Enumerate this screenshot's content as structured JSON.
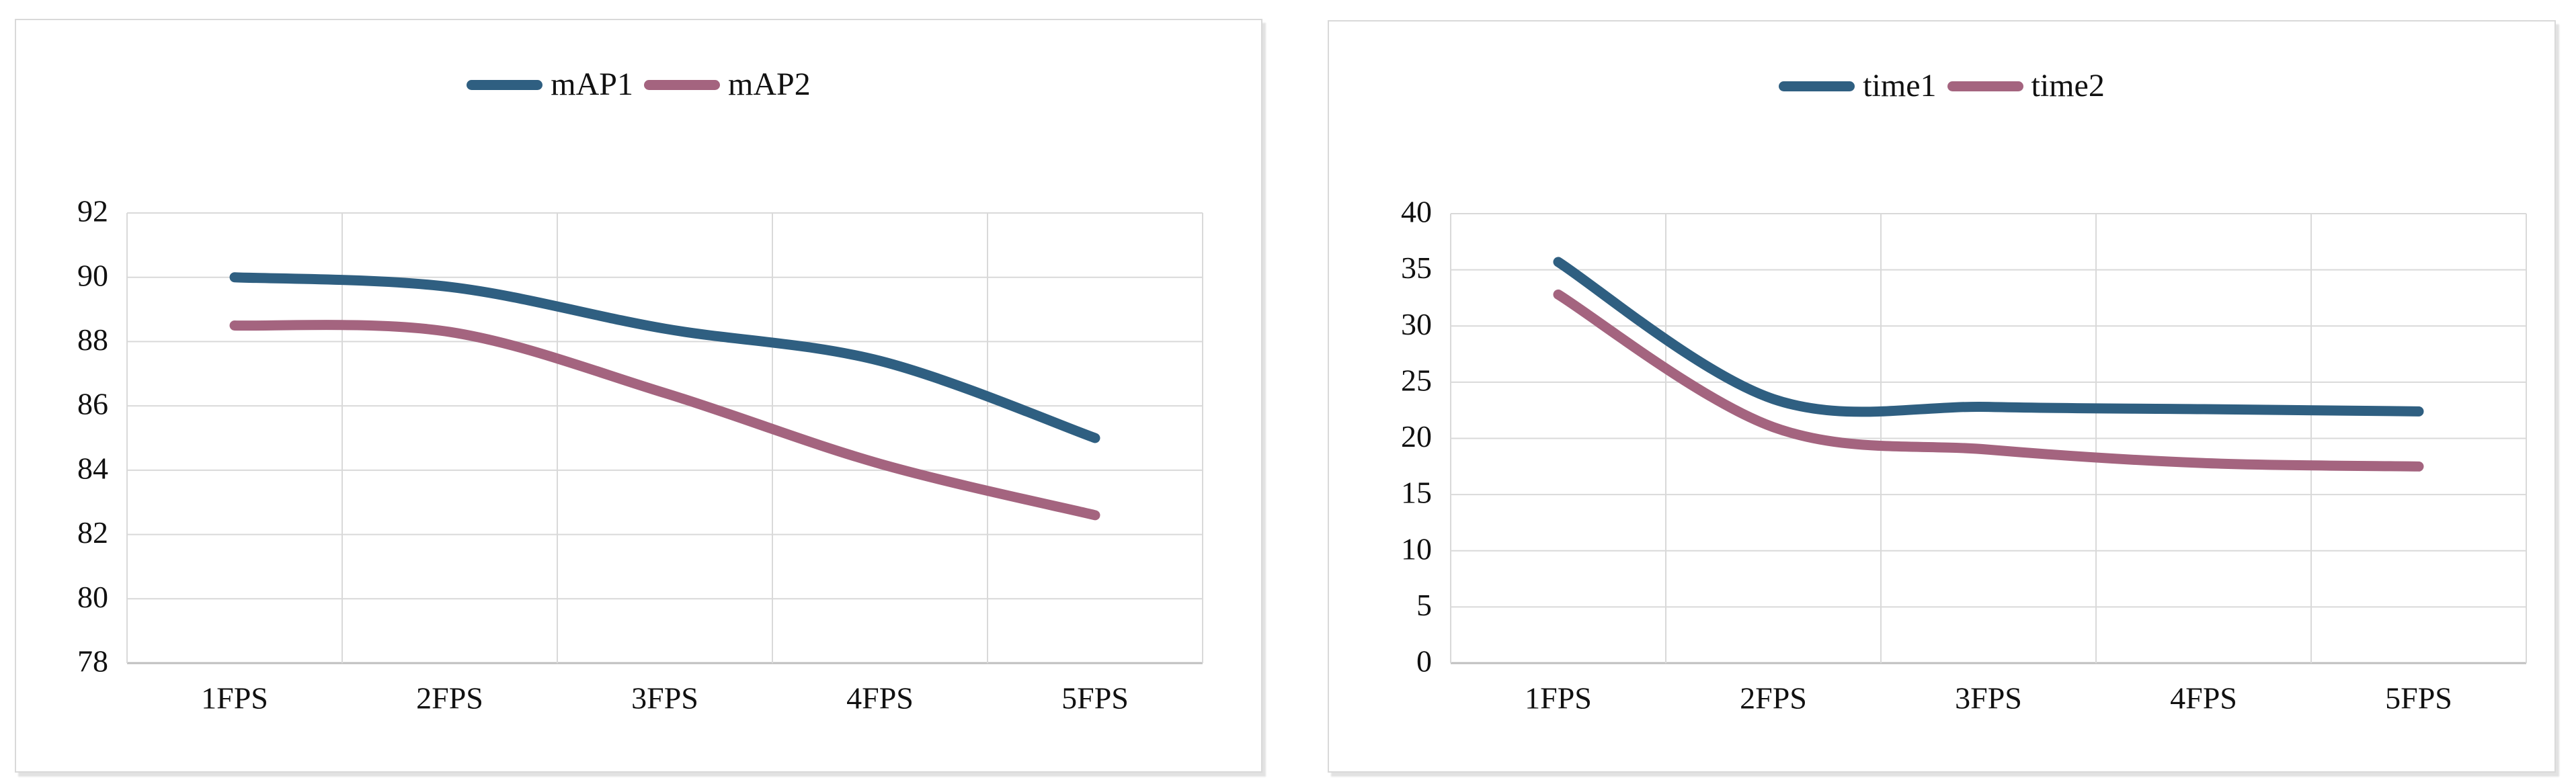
{
  "page": {
    "background_color": "#ffffff",
    "card_border_color": "#d9d9d9",
    "card_shadow_color": "#e2e2e2",
    "gridline_color": "#d9d9d9",
    "axis_line_color": "#bfbfbf",
    "text_color": "#111111"
  },
  "chart_data": [
    {
      "type": "line",
      "title": "",
      "line_style": "smooth",
      "legend_position": "top-center",
      "grid": true,
      "categories": [
        "1FPS",
        "2FPS",
        "3FPS",
        "4FPS",
        "5FPS"
      ],
      "series": [
        {
          "name": "mAP1",
          "color": "#2F5F81",
          "values": [
            90.0,
            89.7,
            88.4,
            87.4,
            85.0
          ]
        },
        {
          "name": "mAP2",
          "color": "#A4647F",
          "values": [
            88.5,
            88.3,
            86.4,
            84.2,
            82.6
          ]
        }
      ],
      "xlabel": "",
      "ylabel": "",
      "ylim": [
        78,
        92
      ],
      "ytick_step": 2,
      "ytick_labels": [
        "78",
        "80",
        "82",
        "84",
        "86",
        "88",
        "90",
        "92"
      ]
    },
    {
      "type": "line",
      "title": "",
      "line_style": "smooth",
      "legend_position": "top-center",
      "grid": true,
      "categories": [
        "1FPS",
        "2FPS",
        "3FPS",
        "4FPS",
        "5FPS"
      ],
      "series": [
        {
          "name": "time1",
          "color": "#2F5F81",
          "values": [
            35.7,
            23.5,
            22.8,
            22.6,
            22.4
          ]
        },
        {
          "name": "time2",
          "color": "#A4647F",
          "values": [
            32.8,
            21.0,
            19.0,
            17.8,
            17.5
          ]
        }
      ],
      "xlabel": "",
      "ylabel": "",
      "ylim": [
        0,
        40
      ],
      "ytick_step": 5,
      "ytick_labels": [
        "0",
        "5",
        "10",
        "15",
        "20",
        "25",
        "30",
        "35",
        "40"
      ]
    }
  ]
}
